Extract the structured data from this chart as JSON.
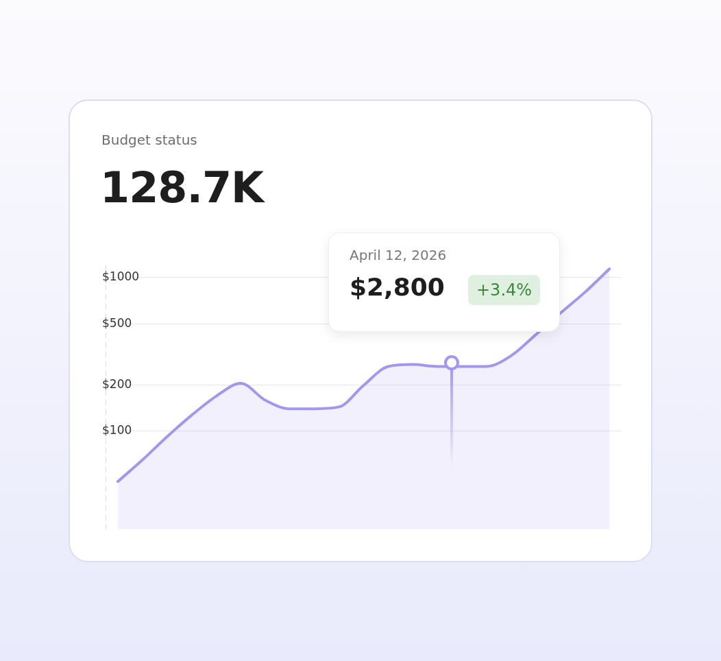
{
  "chart_data": {
    "type": "area",
    "title": "Budget status",
    "subtitle": "128.7K",
    "categories": [
      null,
      null,
      null,
      null,
      null,
      null,
      null,
      null,
      null,
      null,
      null,
      null,
      null,
      null,
      null,
      null,
      null,
      null,
      null,
      null,
      null
    ],
    "series": [
      {
        "color": "#a197ec",
        "values": [
          47,
          65,
          92,
          127,
          169,
          205,
          159,
          140,
          140,
          144,
          199,
          264,
          272,
          264,
          264,
          264,
          310,
          424,
          586,
          802,
          1140
        ]
      }
    ],
    "log": "y",
    "ylim": [
      23,
      1200
    ],
    "yticks": [
      {
        "value": 100,
        "label": "$100"
      },
      {
        "value": 200,
        "label": "$200"
      },
      {
        "value": 500,
        "label": "$500"
      },
      {
        "value": 1000,
        "label": "$1000"
      }
    ],
    "grid": "y",
    "annotations": [
      "April 12, 2026",
      "$2,800",
      "+3.4%"
    ]
  }
}
